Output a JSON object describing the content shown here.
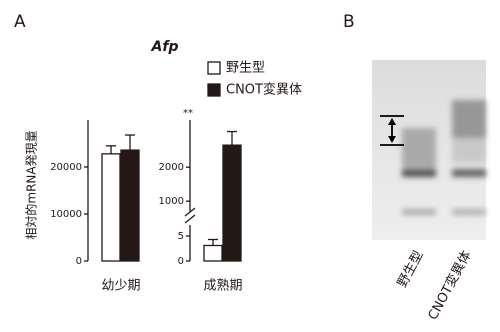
{
  "panel_labels": [
    "A",
    "B"
  ],
  "chart_data": [
    {
      "type": "bar",
      "title": "Afp",
      "ylabel": "相対的mRNA発現量",
      "categories": [
        "幼少期"
      ],
      "series": [
        {
          "name": "野生型",
          "color": "#ffffff",
          "values": [
            22800
          ],
          "errors": [
            1700
          ]
        },
        {
          "name": "CNOT変異体",
          "color": "#231815",
          "values": [
            23600
          ],
          "errors": [
            3200
          ]
        }
      ],
      "ylim": [
        0,
        30000
      ],
      "yticks": [
        0,
        10000,
        20000
      ]
    },
    {
      "type": "broken-bar",
      "categories": [
        "成熟期"
      ],
      "annotation": "**",
      "series": [
        {
          "color": "#ffffff",
          "values": [
            3.1
          ],
          "errors": [
            1.2
          ]
        },
        {
          "color": "#231815",
          "values": [
            2650
          ],
          "errors": [
            400
          ]
        }
      ],
      "segments": [
        {
          "ylim": [
            0,
            6
          ],
          "yticks": [
            0,
            5
          ]
        },
        {
          "ylim": [
            740,
            3390
          ],
          "yticks": [
            1000,
            2000
          ]
        }
      ]
    }
  ],
  "gel": {
    "lanes": [
      "野生型",
      "CNOT変異体"
    ]
  }
}
